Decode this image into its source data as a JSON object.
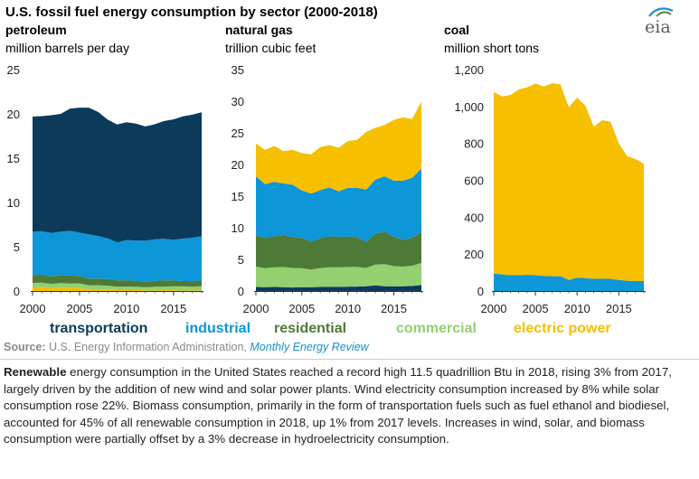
{
  "header": {
    "title": "U.S. fossil fuel energy consumption by sector (2000-2018)",
    "logo_text": "eia"
  },
  "panels": [
    {
      "title": "petroleum",
      "unit": "million barrels per day"
    },
    {
      "title": "natural gas",
      "unit": "trillion cubic feet"
    },
    {
      "title": "coal",
      "unit": "million short tons"
    }
  ],
  "legend": [
    {
      "label": "transportation",
      "color": "#0b3a5b"
    },
    {
      "label": "industrial",
      "color": "#0d96d8"
    },
    {
      "label": "residential",
      "color": "#4d7a36"
    },
    {
      "label": "commercial",
      "color": "#94cf70"
    },
    {
      "label": "electric power",
      "color": "#f6bf00"
    }
  ],
  "source": {
    "label": "Source:",
    "text": "U.S. Energy Information Administration,",
    "publication": "Monthly Energy Review"
  },
  "note": {
    "lead": "Renewable",
    "text": "energy consumption in the United States reached a record high 11.5 quadrillion Btu in 2018, rising 3% from 2017, largely driven by the addition of new wind and solar power plants. Wind electricity consumption increased by 8% while solar consumption rose 22%. Biomass consumption, primarily in the form of transportation fuels such as fuel ethanol and biodiesel, accounted for 45% of all renewable consumption in 2018, up 1% from 2017 levels. Increases in wind, solar, and biomass consumption were partially offset by a 3% decrease in hydroelectricity consumption."
  },
  "chart_data": [
    {
      "type": "area",
      "title": "petroleum",
      "ylabel": "million barrels per day",
      "x": [
        2000,
        2001,
        2002,
        2003,
        2004,
        2005,
        2006,
        2007,
        2008,
        2009,
        2010,
        2011,
        2012,
        2013,
        2014,
        2015,
        2016,
        2017,
        2018
      ],
      "xticks": [
        "2000",
        "2005",
        "2010",
        "2015"
      ],
      "yticks": [
        "0",
        "5",
        "10",
        "15",
        "20",
        "25"
      ],
      "ylim": [
        0,
        25
      ],
      "stacked": true,
      "series": [
        {
          "name": "electric power",
          "values": [
            0.4,
            0.45,
            0.35,
            0.4,
            0.35,
            0.35,
            0.2,
            0.2,
            0.15,
            0.1,
            0.1,
            0.1,
            0.08,
            0.08,
            0.1,
            0.08,
            0.07,
            0.06,
            0.08
          ]
        },
        {
          "name": "commercial",
          "values": [
            0.5,
            0.5,
            0.45,
            0.5,
            0.5,
            0.5,
            0.45,
            0.45,
            0.45,
            0.4,
            0.4,
            0.4,
            0.35,
            0.4,
            0.4,
            0.45,
            0.45,
            0.45,
            0.45
          ]
        },
        {
          "name": "residential",
          "values": [
            0.9,
            0.9,
            0.85,
            0.9,
            0.9,
            0.85,
            0.75,
            0.75,
            0.75,
            0.7,
            0.7,
            0.65,
            0.6,
            0.65,
            0.7,
            0.65,
            0.6,
            0.6,
            0.65
          ]
        },
        {
          "name": "industrial",
          "values": [
            4.9,
            4.9,
            4.9,
            4.9,
            5.05,
            4.9,
            5.0,
            4.8,
            4.6,
            4.3,
            4.55,
            4.55,
            4.65,
            4.7,
            4.7,
            4.6,
            4.8,
            4.9,
            5.0
          ]
        },
        {
          "name": "transportation",
          "values": [
            13.0,
            13.0,
            13.3,
            13.3,
            13.8,
            14.1,
            14.3,
            14.0,
            13.4,
            13.3,
            13.3,
            13.2,
            12.9,
            13.0,
            13.3,
            13.6,
            13.8,
            13.9,
            14.0
          ]
        }
      ]
    },
    {
      "type": "area",
      "title": "natural gas",
      "ylabel": "trillion cubic feet",
      "x": [
        2000,
        2001,
        2002,
        2003,
        2004,
        2005,
        2006,
        2007,
        2008,
        2009,
        2010,
        2011,
        2012,
        2013,
        2014,
        2015,
        2016,
        2017,
        2018
      ],
      "xticks": [
        "2000",
        "2005",
        "2010",
        "2015"
      ],
      "yticks": [
        "0",
        "5",
        "10",
        "15",
        "20",
        "25",
        "30",
        "35"
      ],
      "ylim": [
        0,
        35
      ],
      "stacked": true,
      "series": [
        {
          "name": "transportation",
          "values": [
            0.65,
            0.6,
            0.65,
            0.6,
            0.55,
            0.6,
            0.6,
            0.65,
            0.65,
            0.65,
            0.7,
            0.7,
            0.75,
            0.9,
            0.75,
            0.75,
            0.75,
            0.8,
            0.95
          ]
        },
        {
          "name": "commercial",
          "values": [
            3.2,
            3.0,
            3.1,
            3.2,
            3.1,
            3.0,
            2.8,
            3.0,
            3.1,
            3.1,
            3.1,
            3.1,
            2.9,
            3.3,
            3.5,
            3.2,
            3.1,
            3.2,
            3.5
          ]
        },
        {
          "name": "residential",
          "values": [
            4.95,
            4.8,
            4.9,
            5.1,
            4.85,
            4.8,
            4.4,
            4.7,
            4.9,
            4.8,
            4.8,
            4.7,
            4.1,
            4.9,
            5.1,
            4.6,
            4.3,
            4.4,
            4.9
          ]
        },
        {
          "name": "industrial",
          "values": [
            9.3,
            8.5,
            8.6,
            8.1,
            8.3,
            7.5,
            7.6,
            7.6,
            7.7,
            7.2,
            7.7,
            7.8,
            8.3,
            8.5,
            8.8,
            8.9,
            9.3,
            9.5,
            10.0
          ]
        },
        {
          "name": "electric power",
          "values": [
            5.2,
            5.4,
            5.7,
            5.1,
            5.5,
            5.9,
            6.2,
            6.8,
            6.7,
            6.9,
            7.4,
            7.6,
            9.1,
            8.2,
            8.1,
            9.6,
            10.0,
            9.3,
            10.6
          ]
        }
      ]
    },
    {
      "type": "area",
      "title": "coal",
      "ylabel": "million short tons",
      "x": [
        2000,
        2001,
        2002,
        2003,
        2004,
        2005,
        2006,
        2007,
        2008,
        2009,
        2010,
        2011,
        2012,
        2013,
        2014,
        2015,
        2016,
        2017,
        2018
      ],
      "xticks": [
        "2000",
        "2005",
        "2010",
        "2015"
      ],
      "yticks": [
        "0",
        "200",
        "400",
        "600",
        "800",
        "1,000",
        "1,200"
      ],
      "ylim": [
        0,
        1200
      ],
      "stacked": true,
      "series": [
        {
          "name": "industrial",
          "values": [
            94,
            90,
            86,
            86,
            88,
            86,
            82,
            80,
            80,
            60,
            72,
            70,
            66,
            66,
            66,
            60,
            56,
            54,
            54
          ]
        },
        {
          "name": "electric power",
          "values": [
            985,
            964,
            976,
            1006,
            1016,
            1038,
            1026,
            1046,
            1040,
            936,
            976,
            934,
            824,
            860,
            852,
            740,
            674,
            662,
            636
          ]
        }
      ]
    }
  ]
}
